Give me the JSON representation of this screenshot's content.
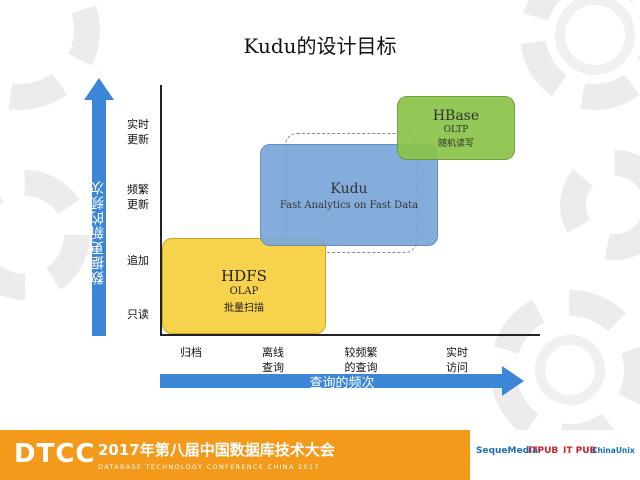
{
  "title": "Kudu的设计目标",
  "y_axis": {
    "title": "数据更新的频次",
    "levels": [
      {
        "label": "实时\n更新"
      },
      {
        "label": "频繁\n更新"
      },
      {
        "label": "追加"
      },
      {
        "label": "只读"
      }
    ]
  },
  "x_axis": {
    "title": "查询的频次",
    "levels": [
      {
        "label": "归档"
      },
      {
        "label": "离线\n查询"
      },
      {
        "label": "较频繁\n的查询"
      },
      {
        "label": "实时\n访问"
      }
    ]
  },
  "boxes": [
    {
      "name": "HDFS",
      "line1": "OLAP",
      "line2": "批量扫描",
      "color": "#f7d24c"
    },
    {
      "name": "Kudu",
      "line1": "Fast Analytics on Fast Data",
      "color": "#7ba7d8"
    },
    {
      "name": "HBase",
      "line1": "OLTP",
      "line2": "随机读写",
      "color": "#8bc34a"
    }
  ],
  "footer": {
    "logo": "DTCC",
    "conference_title": "2017年第八届中国数据库技术大会",
    "conference_subtitle": "DATABASE  TECHNOLOGY  CONFERENCE CHINA 2017",
    "sponsors": [
      "SequeMedia",
      "ITPUB",
      "IT PUB",
      "ChinaUnix"
    ],
    "accent_color": "#f39a1b"
  }
}
